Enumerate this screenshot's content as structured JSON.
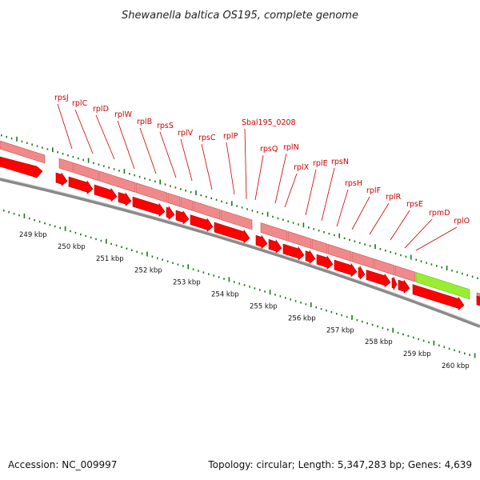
{
  "title": "Shewanella baltica OS195, complete genome",
  "footer": {
    "accession": "Accession: NC_009997",
    "summary": "Topology: circular; Length: 5,347,283 bp; Genes: 4,639"
  },
  "colors": {
    "gene_arrow": "#ff0000",
    "gene_arrow_edge": "#b00000",
    "gene_bar": "#f08a8a",
    "gene_bar_edge": "#c85050",
    "highlight_bar": "#99ee33",
    "backbone": "#8a8a8a",
    "ticks": "#1a7a1a",
    "label_text": "#cc0000"
  },
  "gene_labels": [
    "rpsJ",
    "rplC",
    "rplD",
    "rplW",
    "rplB",
    "rpsS",
    "rplV",
    "rpsC",
    "rplP",
    "Sbal195_0208",
    "rpsQ",
    "rplN",
    "rplX",
    "rplE",
    "rpsN",
    "rpsH",
    "rplF",
    "rplR",
    "rpsE",
    "rpmD",
    "rplO"
  ],
  "kbp_labels": [
    "249 kbp",
    "250 kbp",
    "251 kbp",
    "252 kbp",
    "253 kbp",
    "254 kbp",
    "255 kbp",
    "256 kbp",
    "257 kbp",
    "258 kbp",
    "259 kbp",
    "260 kbp"
  ]
}
